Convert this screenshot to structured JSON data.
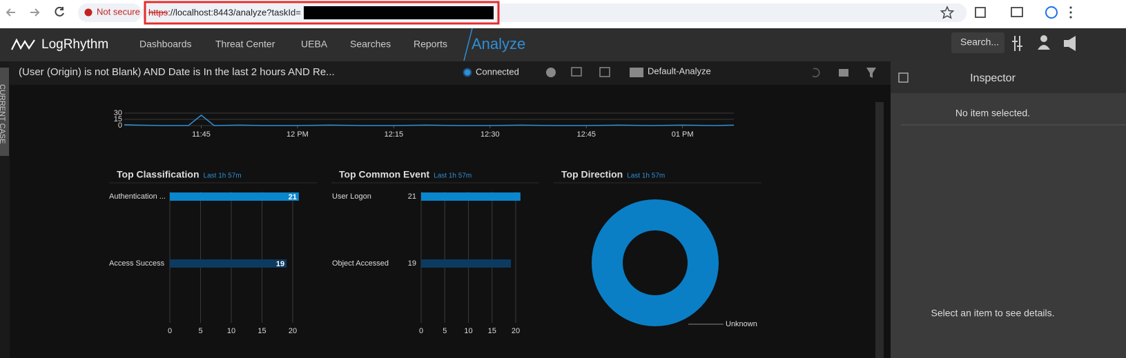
{
  "browser": {
    "security": "Not secure",
    "url_scheme": "https",
    "url_rest": "://localhost:8443/analyze?taskId="
  },
  "nav": {
    "logo": "LogRhythm",
    "items": [
      "Dashboards",
      "Threat Center",
      "UEBA",
      "Searches",
      "Reports"
    ],
    "active": "Analyze",
    "search": "Search..."
  },
  "query": {
    "text": "(User (Origin) is not Blank) AND Date is In the last 2 hours AND Re...",
    "status": "Connected",
    "layout": "Default-Analyze"
  },
  "side_tab": "CURRENT CASE",
  "inspector": {
    "title": "Inspector",
    "empty": "No item selected.",
    "hint": "Select an item to see details."
  },
  "chart_data": [
    {
      "type": "line",
      "color": "#2f8fd6",
      "x": [
        693,
        695,
        699,
        703,
        705,
        707,
        711,
        715,
        720,
        725,
        730,
        735,
        740,
        745,
        750,
        755,
        760,
        765,
        770,
        775,
        780,
        785,
        788
      ],
      "values": [
        2,
        1,
        0,
        0,
        25,
        0,
        1,
        0,
        0,
        1,
        0,
        0,
        1,
        0,
        0,
        1,
        0,
        0,
        1,
        0,
        1,
        0,
        1
      ],
      "xlim": [
        693,
        788
      ],
      "xticks": [
        {
          "value": 705,
          "label": "11:45"
        },
        {
          "value": 720,
          "label": "12 PM"
        },
        {
          "value": 735,
          "label": "12:15"
        },
        {
          "value": 750,
          "label": "12:30"
        },
        {
          "value": 765,
          "label": "12:45"
        },
        {
          "value": 780,
          "label": "01 PM"
        }
      ],
      "ylim": [
        0,
        30
      ],
      "yticks": [
        0,
        15,
        30
      ],
      "grid": true
    },
    {
      "type": "hbar",
      "title": "Top Classification",
      "subtitle": "Last 1h 57m",
      "categories": [
        "Authentication ...",
        "Access Success"
      ],
      "values": [
        21,
        19
      ],
      "colors": [
        "#0a86cc",
        "#0d3a60"
      ],
      "xlim": [
        0,
        21
      ],
      "xticks": [
        0,
        5,
        10,
        15,
        20
      ],
      "value_position": "inside",
      "grid": true
    },
    {
      "type": "hbar",
      "title": "Top Common Event",
      "subtitle": "Last 1h 57m",
      "categories": [
        "User Logon",
        "Object Accessed"
      ],
      "values": [
        21,
        19
      ],
      "colors": [
        "#0a86cc",
        "#0d3a60"
      ],
      "xlim": [
        0,
        21
      ],
      "xticks": [
        0,
        5,
        10,
        15,
        20
      ],
      "value_position": "outside",
      "grid": true
    },
    {
      "type": "donut",
      "title": "Top Direction",
      "subtitle": "Last 1h 57m",
      "categories": [
        "Unknown"
      ],
      "values": [
        100
      ],
      "colors": [
        "#0a7fc6"
      ]
    }
  ]
}
